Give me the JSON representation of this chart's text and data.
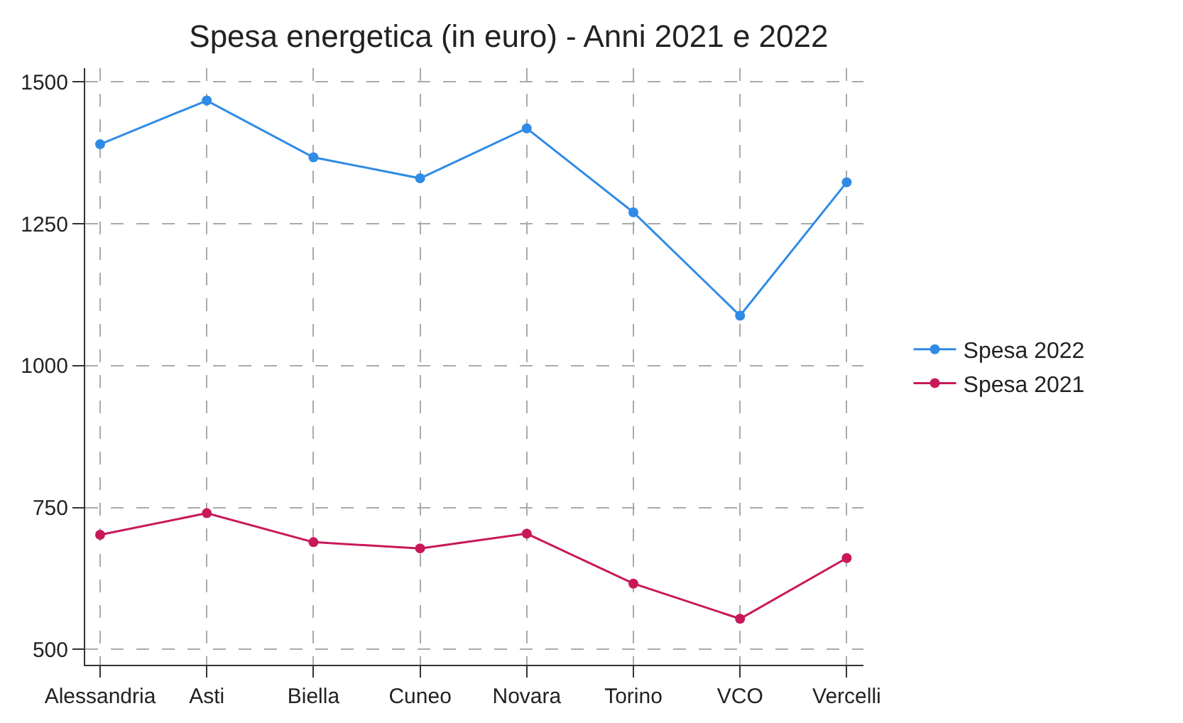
{
  "chart_data": {
    "type": "line",
    "title": "Spesa energetica (in euro) - Anni 2021 e 2022",
    "categories": [
      "Alessandria",
      "Asti",
      "Biella",
      "Cuneo",
      "Novara",
      "Torino",
      "VCO",
      "Vercelli"
    ],
    "series": [
      {
        "name": "Spesa 2022",
        "color": "#2f8be6",
        "values": [
          1390,
          1467,
          1367,
          1330,
          1418,
          1270,
          1088,
          1323
        ]
      },
      {
        "name": "Spesa 2021",
        "color": "#c8185a",
        "values": [
          702,
          740,
          689,
          678,
          704,
          616,
          554,
          661
        ]
      }
    ],
    "ylim": [
      473,
      1524
    ],
    "yticks": [
      500,
      750,
      1000,
      1250,
      1500
    ],
    "grid": true,
    "legend": "right",
    "marker": "circle",
    "line_style": "solid"
  }
}
